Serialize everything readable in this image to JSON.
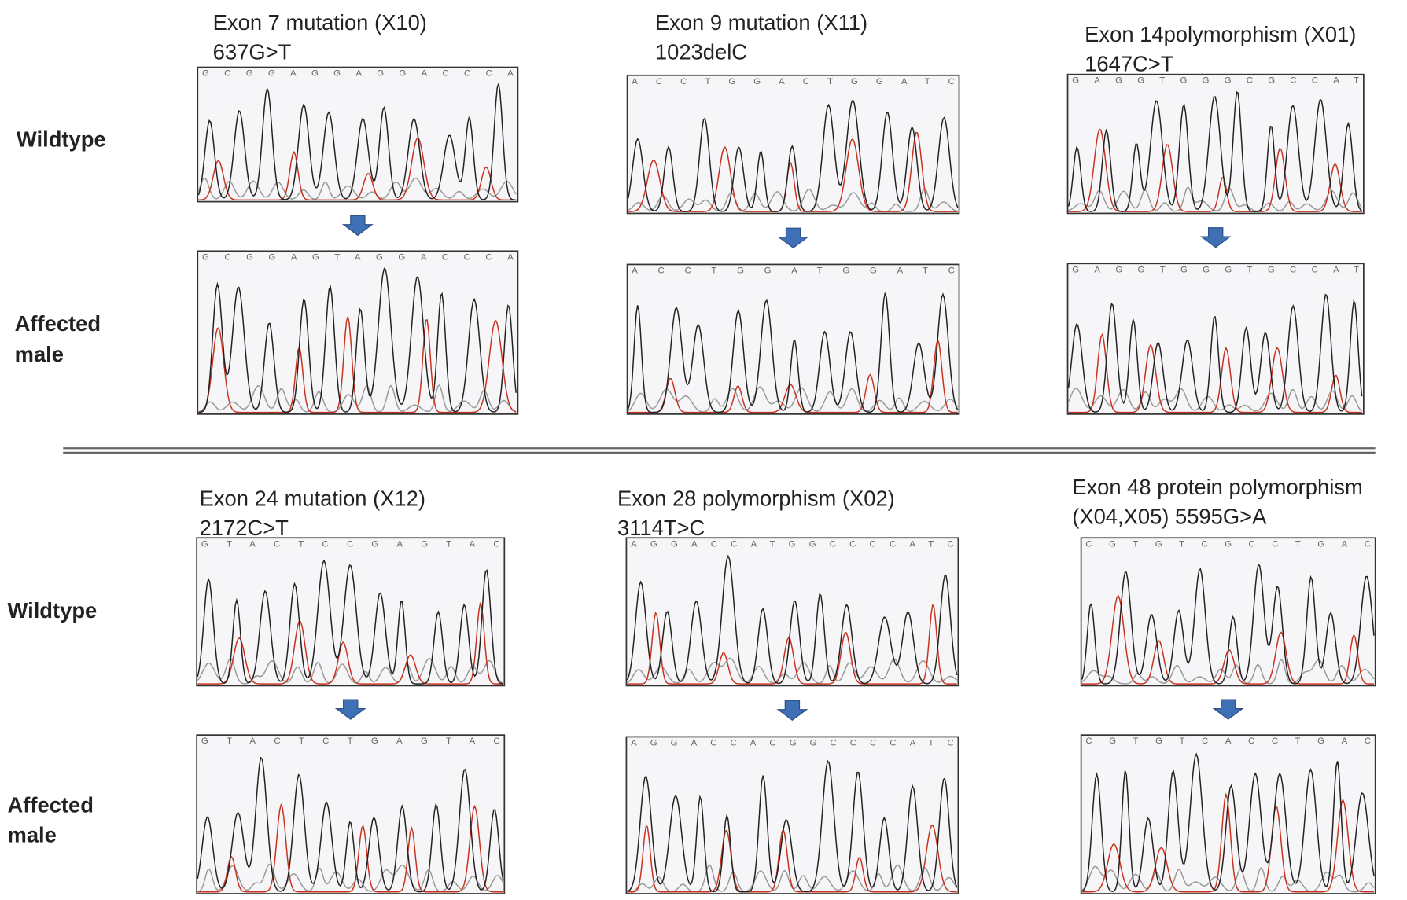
{
  "row_labels": {
    "wildtype": "Wildtype",
    "affected": [
      "Affected",
      "male"
    ]
  },
  "panels": [
    {
      "title": "Exon 7 mutation (X10)",
      "subtitle": "637G>T",
      "wildtype_bases": "GCGGAGGAGGACCCA",
      "affected_bases": "GCGGAGTAGGACCCA"
    },
    {
      "title": "Exon 9 mutation (X11)",
      "subtitle": "1023delC",
      "wildtype_bases": "ACCTGGACTGGATC",
      "affected_bases": "ACCTGGATGGATC"
    },
    {
      "title": "Exon 14polymorphism (X01)",
      "subtitle": "1647C>T",
      "wildtype_bases": "GAGGTGGGCGCCAT",
      "affected_bases": "GAGGTGGGTGCCAT"
    },
    {
      "title": "Exon 24 mutation (X12)",
      "subtitle": "2172C>T",
      "wildtype_bases": "GTACTCCGAGTAC",
      "affected_bases": "GTACTCTGAGTAC"
    },
    {
      "title": "Exon 28 polymorphism (X02)",
      "subtitle": "3114T>C",
      "wildtype_bases": "AGGACCATGGCCCCATC",
      "affected_bases": "AGGACCACGGCCCCATC"
    },
    {
      "title": "Exon 48 protein polymorphism",
      "subtitle": "(X04,X05) 5595G>A",
      "wildtype_bases": "CGTGTCGCCTGAC",
      "affected_bases": "CGTGTCACCTGAC"
    }
  ]
}
